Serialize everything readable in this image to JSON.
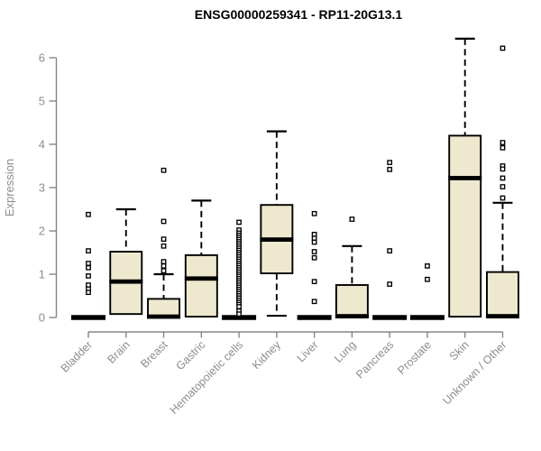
{
  "chart_data": {
    "type": "boxplot",
    "title": "ENSG00000259341 - RP11-20G13.1",
    "ylabel": "Expression",
    "xlabel": "",
    "ylim": [
      0,
      6.6
    ],
    "yticks": [
      0,
      1,
      2,
      3,
      4,
      5,
      6
    ],
    "grid": false,
    "legend": false,
    "categories": [
      "Bladder",
      "Brain",
      "Breast",
      "Gastric",
      "Hematopoietic cells",
      "Kidney",
      "Liver",
      "Lung",
      "Pancreas",
      "Prostate",
      "Skin",
      "Unknown / Other"
    ],
    "boxes": [
      {
        "category": "Bladder",
        "low": 0,
        "q1": 0,
        "median": 0,
        "q3": 0,
        "high": 0,
        "outliers": [
          2.38,
          1.54,
          1.25,
          1.15,
          0.96,
          0.75,
          0.66,
          0.58
        ]
      },
      {
        "category": "Brain",
        "low": 0.08,
        "q1": 0.08,
        "median": 0.83,
        "q3": 1.52,
        "high": 2.5,
        "outliers": []
      },
      {
        "category": "Breast",
        "low": 0,
        "q1": 0,
        "median": 0.02,
        "q3": 0.43,
        "high": 1.0,
        "outliers": [
          3.4,
          2.22,
          1.81,
          1.65,
          1.29,
          1.19,
          1.08
        ]
      },
      {
        "category": "Gastric",
        "low": 0.02,
        "q1": 0.02,
        "median": 0.9,
        "q3": 1.44,
        "high": 2.7,
        "outliers": []
      },
      {
        "category": "Hematopoietic cells",
        "low": 0,
        "q1": 0,
        "median": 0,
        "q3": 0,
        "high": 0,
        "outliers": [
          2.2,
          2.02,
          1.95,
          1.9,
          1.85,
          1.8,
          1.75,
          1.7,
          1.65,
          1.6,
          1.55,
          1.5,
          1.45,
          1.4,
          1.35,
          1.3,
          1.25,
          1.2,
          1.15,
          1.1,
          1.05,
          1.0,
          0.95,
          0.9,
          0.85,
          0.8,
          0.75,
          0.7,
          0.65,
          0.6,
          0.55,
          0.5,
          0.45,
          0.4,
          0.35,
          0.3,
          0.25,
          0.15,
          0.08
        ]
      },
      {
        "category": "Kidney",
        "low": 0.04,
        "q1": 1.02,
        "median": 1.8,
        "q3": 2.6,
        "high": 4.3,
        "outliers": []
      },
      {
        "category": "Liver",
        "low": 0,
        "q1": 0,
        "median": 0,
        "q3": 0,
        "high": 0,
        "outliers": [
          2.4,
          1.92,
          1.83,
          1.74,
          1.52,
          1.38,
          0.83,
          0.37
        ]
      },
      {
        "category": "Lung",
        "low": 0,
        "q1": 0,
        "median": 0.03,
        "q3": 0.75,
        "high": 1.65,
        "outliers": [
          2.27
        ]
      },
      {
        "category": "Pancreas",
        "low": 0,
        "q1": 0,
        "median": 0,
        "q3": 0,
        "high": 0,
        "outliers": [
          3.58,
          3.42,
          1.54,
          0.77
        ]
      },
      {
        "category": "Prostate",
        "low": 0,
        "q1": 0,
        "median": 0,
        "q3": 0,
        "high": 0,
        "outliers": [
          1.19,
          0.88
        ]
      },
      {
        "category": "Skin",
        "low": 0.02,
        "q1": 0.02,
        "median": 3.22,
        "q3": 4.2,
        "high": 6.44,
        "outliers": []
      },
      {
        "category": "Unknown / Other",
        "low": 0,
        "q1": 0,
        "median": 0.03,
        "q3": 1.05,
        "high": 2.65,
        "outliers": [
          6.22,
          4.04,
          3.92,
          3.5,
          3.43,
          3.22,
          3.02,
          2.76
        ]
      }
    ],
    "colors": {
      "box_fill": "#EDE8CE",
      "box_stroke": "#000000",
      "median_color": "#000000",
      "outlier_fill": "#FFFFFF",
      "outlier_stroke": "#000000",
      "axis_line": "#858585",
      "axis_text": "#8D8D8D",
      "title_color": "#000000",
      "background": "#FFFFFF"
    }
  }
}
